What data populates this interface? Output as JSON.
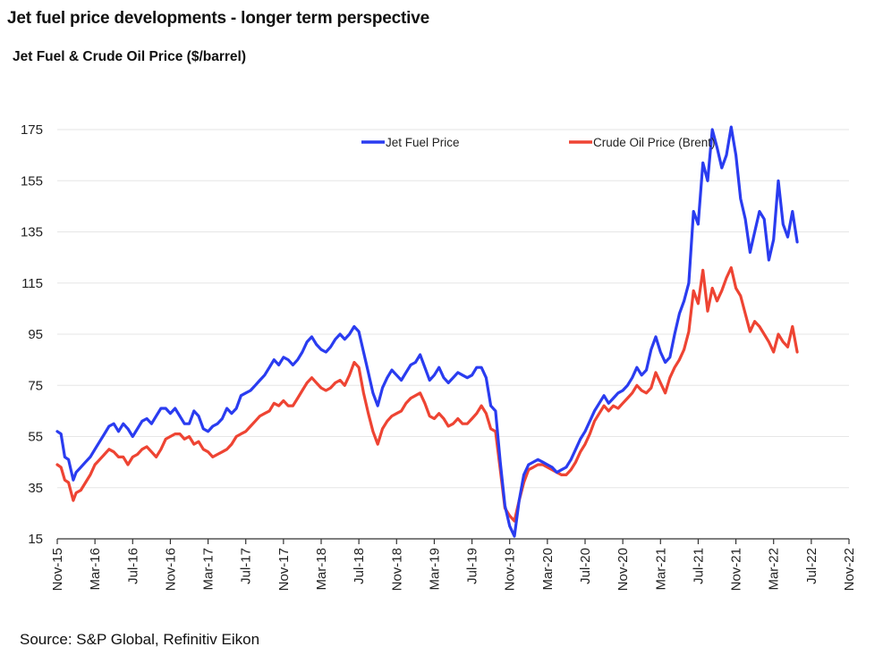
{
  "page_title": "Jet fuel price developments - longer term perspective",
  "source": "Source: S&P Global, Refinitiv Eikon",
  "colors": {
    "jet": "#2a3cf0",
    "brent": "#ee4433",
    "grid": "#e6e6e6",
    "axis": "#333333"
  },
  "chart_data": {
    "type": "line",
    "title": "Jet Fuel & Crude Oil Price ($/barrel)",
    "xlabel": "",
    "ylabel": "",
    "ylim": [
      15,
      175
    ],
    "yticks": [
      15,
      35,
      55,
      75,
      95,
      115,
      135,
      155,
      175
    ],
    "xlim": [
      "Nov-15",
      "Nov-22"
    ],
    "xtick_labels": [
      "Nov-15",
      "Mar-16",
      "Jul-16",
      "Nov-16",
      "Mar-17",
      "Jul-17",
      "Nov-17",
      "Mar-18",
      "Jul-18",
      "Nov-18",
      "Mar-19",
      "Jul-19",
      "Nov-19",
      "Mar-20",
      "Jul-20",
      "Nov-20",
      "Mar-21",
      "Jul-21",
      "Nov-21",
      "Mar-22",
      "Jul-22",
      "Nov-22"
    ],
    "legend": [
      "Jet Fuel Price",
      "Crude Oil Price (Brent)"
    ],
    "legend_position": "top",
    "x_unit": "months since Nov-15",
    "series": [
      {
        "name": "Jet Fuel Price",
        "points": [
          [
            0,
            57
          ],
          [
            0.4,
            56
          ],
          [
            0.8,
            47
          ],
          [
            1.2,
            46
          ],
          [
            1.7,
            38
          ],
          [
            2,
            41
          ],
          [
            2.5,
            43
          ],
          [
            3,
            45
          ],
          [
            3.5,
            47
          ],
          [
            4,
            50
          ],
          [
            4.5,
            53
          ],
          [
            5,
            56
          ],
          [
            5.5,
            59
          ],
          [
            6,
            60
          ],
          [
            6.5,
            57
          ],
          [
            7,
            60
          ],
          [
            7.5,
            58
          ],
          [
            8,
            55
          ],
          [
            8.5,
            58
          ],
          [
            9,
            61
          ],
          [
            9.5,
            62
          ],
          [
            10,
            60
          ],
          [
            10.5,
            63
          ],
          [
            11,
            66
          ],
          [
            11.5,
            66
          ],
          [
            12,
            64
          ],
          [
            12.5,
            66
          ],
          [
            13,
            63
          ],
          [
            13.5,
            60
          ],
          [
            14,
            60
          ],
          [
            14.5,
            65
          ],
          [
            15,
            63
          ],
          [
            15.5,
            58
          ],
          [
            16,
            57
          ],
          [
            16.5,
            59
          ],
          [
            17,
            60
          ],
          [
            17.5,
            62
          ],
          [
            18,
            66
          ],
          [
            18.5,
            64
          ],
          [
            19,
            66
          ],
          [
            19.5,
            71
          ],
          [
            20,
            72
          ],
          [
            20.5,
            73
          ],
          [
            21,
            75
          ],
          [
            21.5,
            77
          ],
          [
            22,
            79
          ],
          [
            22.5,
            82
          ],
          [
            23,
            85
          ],
          [
            23.5,
            83
          ],
          [
            24,
            86
          ],
          [
            24.5,
            85
          ],
          [
            25,
            83
          ],
          [
            25.5,
            85
          ],
          [
            26,
            88
          ],
          [
            26.5,
            92
          ],
          [
            27,
            94
          ],
          [
            27.5,
            91
          ],
          [
            28,
            89
          ],
          [
            28.5,
            88
          ],
          [
            29,
            90
          ],
          [
            29.5,
            93
          ],
          [
            30,
            95
          ],
          [
            30.5,
            93
          ],
          [
            31,
            95
          ],
          [
            31.5,
            98
          ],
          [
            32,
            96
          ],
          [
            32.5,
            88
          ],
          [
            33,
            80
          ],
          [
            33.5,
            72
          ],
          [
            34,
            67
          ],
          [
            34.5,
            74
          ],
          [
            35,
            78
          ],
          [
            35.5,
            81
          ],
          [
            36,
            79
          ],
          [
            36.5,
            77
          ],
          [
            37,
            80
          ],
          [
            37.5,
            83
          ],
          [
            38,
            84
          ],
          [
            38.5,
            87
          ],
          [
            39,
            82
          ],
          [
            39.5,
            77
          ],
          [
            40,
            79
          ],
          [
            40.5,
            82
          ],
          [
            41,
            78
          ],
          [
            41.5,
            76
          ],
          [
            42,
            78
          ],
          [
            42.5,
            80
          ],
          [
            43,
            79
          ],
          [
            43.5,
            78
          ],
          [
            44,
            79
          ],
          [
            44.5,
            82
          ],
          [
            45,
            82
          ],
          [
            45.5,
            78
          ],
          [
            46,
            67
          ],
          [
            46.5,
            65
          ],
          [
            47,
            45
          ],
          [
            47.5,
            28
          ],
          [
            48,
            20
          ],
          [
            48.5,
            16
          ],
          [
            49,
            30
          ],
          [
            49.5,
            40
          ],
          [
            50,
            44
          ],
          [
            50.5,
            45
          ],
          [
            51,
            46
          ],
          [
            51.5,
            45
          ],
          [
            52,
            44
          ],
          [
            52.5,
            43
          ],
          [
            53,
            41
          ],
          [
            53.5,
            42
          ],
          [
            54,
            43
          ],
          [
            54.5,
            46
          ],
          [
            55,
            50
          ],
          [
            55.5,
            54
          ],
          [
            56,
            57
          ],
          [
            56.5,
            61
          ],
          [
            57,
            65
          ],
          [
            57.5,
            68
          ],
          [
            58,
            71
          ],
          [
            58.5,
            68
          ],
          [
            59,
            70
          ],
          [
            59.5,
            72
          ],
          [
            60,
            73
          ],
          [
            60.5,
            75
          ],
          [
            61,
            78
          ],
          [
            61.5,
            82
          ],
          [
            62,
            79
          ],
          [
            62.5,
            81
          ],
          [
            63,
            89
          ],
          [
            63.5,
            94
          ],
          [
            64,
            88
          ],
          [
            64.5,
            84
          ],
          [
            65,
            86
          ],
          [
            65.5,
            95
          ],
          [
            66,
            103
          ],
          [
            66.5,
            108
          ],
          [
            67,
            115
          ],
          [
            67.5,
            143
          ],
          [
            68,
            138
          ],
          [
            68.5,
            162
          ],
          [
            69,
            155
          ],
          [
            69.5,
            175
          ],
          [
            70,
            168
          ],
          [
            70.5,
            160
          ],
          [
            71,
            165
          ],
          [
            71.5,
            176
          ],
          [
            72,
            165
          ],
          [
            72.5,
            148
          ],
          [
            73,
            140
          ],
          [
            73.5,
            127
          ],
          [
            74,
            135
          ],
          [
            74.5,
            143
          ],
          [
            75,
            140
          ],
          [
            75.5,
            124
          ],
          [
            76,
            132
          ],
          [
            76.5,
            155
          ],
          [
            77,
            138
          ],
          [
            77.5,
            133
          ],
          [
            78,
            143
          ],
          [
            78.5,
            131
          ]
        ]
      },
      {
        "name": "Crude Oil Price (Brent)",
        "points": [
          [
            0,
            44
          ],
          [
            0.4,
            43
          ],
          [
            0.8,
            38
          ],
          [
            1.2,
            37
          ],
          [
            1.7,
            30
          ],
          [
            2,
            33
          ],
          [
            2.5,
            34
          ],
          [
            3,
            37
          ],
          [
            3.5,
            40
          ],
          [
            4,
            44
          ],
          [
            4.5,
            46
          ],
          [
            5,
            48
          ],
          [
            5.5,
            50
          ],
          [
            6,
            49
          ],
          [
            6.5,
            47
          ],
          [
            7,
            47
          ],
          [
            7.5,
            44
          ],
          [
            8,
            47
          ],
          [
            8.5,
            48
          ],
          [
            9,
            50
          ],
          [
            9.5,
            51
          ],
          [
            10,
            49
          ],
          [
            10.5,
            47
          ],
          [
            11,
            50
          ],
          [
            11.5,
            54
          ],
          [
            12,
            55
          ],
          [
            12.5,
            56
          ],
          [
            13,
            56
          ],
          [
            13.5,
            54
          ],
          [
            14,
            55
          ],
          [
            14.5,
            52
          ],
          [
            15,
            53
          ],
          [
            15.5,
            50
          ],
          [
            16,
            49
          ],
          [
            16.5,
            47
          ],
          [
            17,
            48
          ],
          [
            17.5,
            49
          ],
          [
            18,
            50
          ],
          [
            18.5,
            52
          ],
          [
            19,
            55
          ],
          [
            19.5,
            56
          ],
          [
            20,
            57
          ],
          [
            20.5,
            59
          ],
          [
            21,
            61
          ],
          [
            21.5,
            63
          ],
          [
            22,
            64
          ],
          [
            22.5,
            65
          ],
          [
            23,
            68
          ],
          [
            23.5,
            67
          ],
          [
            24,
            69
          ],
          [
            24.5,
            67
          ],
          [
            25,
            67
          ],
          [
            25.5,
            70
          ],
          [
            26,
            73
          ],
          [
            26.5,
            76
          ],
          [
            27,
            78
          ],
          [
            27.5,
            76
          ],
          [
            28,
            74
          ],
          [
            28.5,
            73
          ],
          [
            29,
            74
          ],
          [
            29.5,
            76
          ],
          [
            30,
            77
          ],
          [
            30.5,
            75
          ],
          [
            31,
            79
          ],
          [
            31.5,
            84
          ],
          [
            32,
            82
          ],
          [
            32.5,
            72
          ],
          [
            33,
            64
          ],
          [
            33.5,
            57
          ],
          [
            34,
            52
          ],
          [
            34.5,
            58
          ],
          [
            35,
            61
          ],
          [
            35.5,
            63
          ],
          [
            36,
            64
          ],
          [
            36.5,
            65
          ],
          [
            37,
            68
          ],
          [
            37.5,
            70
          ],
          [
            38,
            71
          ],
          [
            38.5,
            72
          ],
          [
            39,
            68
          ],
          [
            39.5,
            63
          ],
          [
            40,
            62
          ],
          [
            40.5,
            64
          ],
          [
            41,
            62
          ],
          [
            41.5,
            59
          ],
          [
            42,
            60
          ],
          [
            42.5,
            62
          ],
          [
            43,
            60
          ],
          [
            43.5,
            60
          ],
          [
            44,
            62
          ],
          [
            44.5,
            64
          ],
          [
            45,
            67
          ],
          [
            45.5,
            64
          ],
          [
            46,
            58
          ],
          [
            46.5,
            57
          ],
          [
            47,
            42
          ],
          [
            47.5,
            27
          ],
          [
            48,
            24
          ],
          [
            48.5,
            22
          ],
          [
            49,
            30
          ],
          [
            49.5,
            37
          ],
          [
            50,
            42
          ],
          [
            50.5,
            43
          ],
          [
            51,
            44
          ],
          [
            51.5,
            44
          ],
          [
            52,
            43
          ],
          [
            52.5,
            42
          ],
          [
            53,
            41
          ],
          [
            53.5,
            40
          ],
          [
            54,
            40
          ],
          [
            54.5,
            42
          ],
          [
            55,
            45
          ],
          [
            55.5,
            49
          ],
          [
            56,
            52
          ],
          [
            56.5,
            56
          ],
          [
            57,
            61
          ],
          [
            57.5,
            64
          ],
          [
            58,
            67
          ],
          [
            58.5,
            65
          ],
          [
            59,
            67
          ],
          [
            59.5,
            66
          ],
          [
            60,
            68
          ],
          [
            60.5,
            70
          ],
          [
            61,
            72
          ],
          [
            61.5,
            75
          ],
          [
            62,
            73
          ],
          [
            62.5,
            72
          ],
          [
            63,
            74
          ],
          [
            63.5,
            80
          ],
          [
            64,
            76
          ],
          [
            64.5,
            72
          ],
          [
            65,
            78
          ],
          [
            65.5,
            82
          ],
          [
            66,
            85
          ],
          [
            66.5,
            89
          ],
          [
            67,
            96
          ],
          [
            67.5,
            112
          ],
          [
            68,
            107
          ],
          [
            68.5,
            120
          ],
          [
            69,
            104
          ],
          [
            69.5,
            113
          ],
          [
            70,
            108
          ],
          [
            70.5,
            112
          ],
          [
            71,
            117
          ],
          [
            71.5,
            121
          ],
          [
            72,
            113
          ],
          [
            72.5,
            110
          ],
          [
            73,
            103
          ],
          [
            73.5,
            96
          ],
          [
            74,
            100
          ],
          [
            74.5,
            98
          ],
          [
            75,
            95
          ],
          [
            75.5,
            92
          ],
          [
            76,
            88
          ],
          [
            76.5,
            95
          ],
          [
            77,
            92
          ],
          [
            77.5,
            90
          ],
          [
            78,
            98
          ],
          [
            78.5,
            88
          ]
        ]
      }
    ]
  }
}
